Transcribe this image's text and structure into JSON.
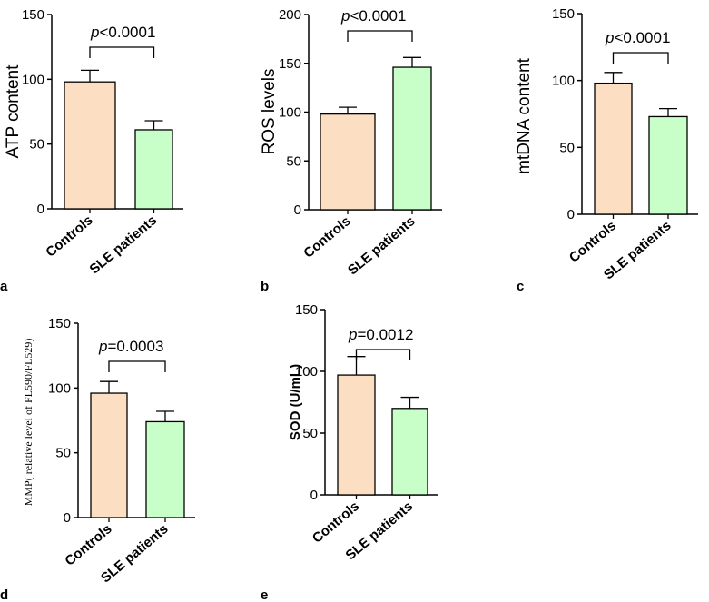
{
  "colors": {
    "control": "#FCDFC3",
    "sle": "#C8FFC8",
    "stroke": "#000000"
  },
  "chart_data": [
    {
      "type": "bar",
      "panel": "a",
      "ylabel": "ATP content",
      "ylim": [
        0,
        150
      ],
      "yticks": [
        0,
        50,
        100,
        150
      ],
      "categories": [
        "Controls",
        "SLE patients"
      ],
      "values": [
        98,
        61
      ],
      "errors": [
        9,
        7
      ],
      "pvalue": {
        "p": "p",
        "rest": "<0.0001"
      }
    },
    {
      "type": "bar",
      "panel": "b",
      "ylabel": "ROS levels",
      "ylim": [
        0,
        200
      ],
      "yticks": [
        0,
        50,
        100,
        150,
        200
      ],
      "categories": [
        "Controls",
        "SLE patients"
      ],
      "values": [
        98,
        146
      ],
      "errors": [
        7,
        10
      ],
      "pvalue": {
        "p": "p",
        "rest": "<0.0001"
      }
    },
    {
      "type": "bar",
      "panel": "c",
      "ylabel": "mtDNA content",
      "ylim": [
        0,
        150
      ],
      "yticks": [
        0,
        50,
        100,
        150
      ],
      "categories": [
        "Controls",
        "SLE patients"
      ],
      "values": [
        98,
        73
      ],
      "errors": [
        8,
        6
      ],
      "pvalue": {
        "p": "p",
        "rest": "<0.0001"
      }
    },
    {
      "type": "bar",
      "panel": "d",
      "ylabel": "MMP( relative level of FL590/FL529)",
      "ylim": [
        0,
        150
      ],
      "yticks": [
        0,
        50,
        100,
        150
      ],
      "categories": [
        "Controls",
        "SLE patients"
      ],
      "values": [
        96,
        74
      ],
      "errors": [
        9,
        8
      ],
      "pvalue": {
        "p": "p",
        "rest": "=0.0003"
      }
    },
    {
      "type": "bar",
      "panel": "e",
      "ylabel": "SOD (U/mL)",
      "ylim": [
        0,
        150
      ],
      "yticks": [
        0,
        50,
        100,
        150
      ],
      "categories": [
        "Controls",
        "SLE patients"
      ],
      "values": [
        97,
        70
      ],
      "errors": [
        15,
        9
      ],
      "pvalue": {
        "p": "p",
        "rest": "=0.0012"
      }
    }
  ]
}
